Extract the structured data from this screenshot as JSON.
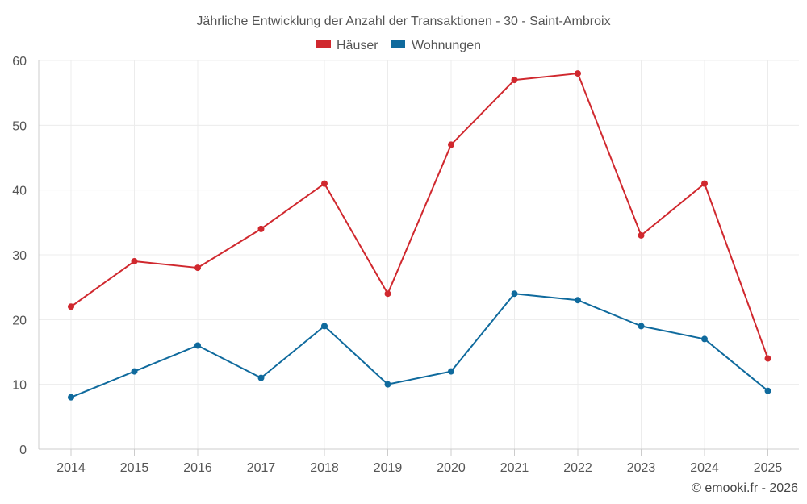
{
  "chart_data": {
    "type": "line",
    "title": "Jährliche Entwicklung der Anzahl der Transaktionen - 30 - Saint-Ambroix",
    "categories": [
      "2014",
      "2015",
      "2016",
      "2017",
      "2018",
      "2019",
      "2020",
      "2021",
      "2022",
      "2023",
      "2024",
      "2025"
    ],
    "series": [
      {
        "name": "Häuser",
        "color": "#d0282e",
        "values": [
          22,
          29,
          28,
          34,
          41,
          24,
          47,
          57,
          58,
          33,
          41,
          14
        ]
      },
      {
        "name": "Wohnungen",
        "color": "#0f6a9d",
        "values": [
          8,
          12,
          16,
          11,
          19,
          10,
          12,
          24,
          23,
          19,
          17,
          9
        ]
      }
    ],
    "y_ticks": [
      "0",
      "10",
      "20",
      "30",
      "40",
      "50",
      "60"
    ],
    "ylim": [
      0,
      60
    ],
    "grid": true,
    "legend_position": "top-center",
    "xlabel": "",
    "ylabel": ""
  },
  "credit": "© emooki.fr - 2026"
}
